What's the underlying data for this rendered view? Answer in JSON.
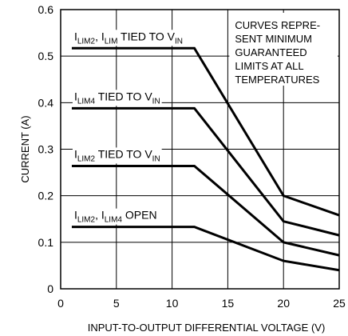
{
  "chart_data": {
    "type": "line",
    "xlabel": "INPUT-TO-OUTPUT DIFFERENTIAL VOLTAGE (V)",
    "ylabel": "CURRENT (A)",
    "xlim": [
      0,
      25
    ],
    "ylim": [
      0,
      0.6
    ],
    "xticks": [
      "0",
      "5",
      "10",
      "15",
      "20",
      "25"
    ],
    "yticks": [
      "0",
      "0.1",
      "0.2",
      "0.3",
      "0.4",
      "0.5",
      "0.6"
    ],
    "grid": true,
    "note_lines": [
      "CURVES REPRE-",
      "SENT MINIMUM",
      "GUARANTEED",
      "LIMITS AT ALL",
      "TEMPERATURES"
    ],
    "series": [
      {
        "label_parts": [
          [
            "I",
            false
          ],
          [
            "LIM2",
            true
          ],
          [
            ", I",
            false
          ],
          [
            "LIM",
            true
          ],
          [
            " TIED TO V",
            false
          ],
          [
            "IN",
            true
          ]
        ],
        "x": [
          1,
          12,
          20,
          25
        ],
        "y": [
          0.517,
          0.517,
          0.2,
          0.158
        ]
      },
      {
        "label_parts": [
          [
            "I",
            false
          ],
          [
            "LIM4",
            true
          ],
          [
            " TIED TO V",
            false
          ],
          [
            "IN",
            true
          ]
        ],
        "x": [
          1,
          12,
          20,
          25
        ],
        "y": [
          0.388,
          0.388,
          0.145,
          0.115
        ]
      },
      {
        "label_parts": [
          [
            "I",
            false
          ],
          [
            "LIM2",
            true
          ],
          [
            " TIED TO V",
            false
          ],
          [
            "IN",
            true
          ]
        ],
        "x": [
          1,
          12,
          20,
          25
        ],
        "y": [
          0.264,
          0.264,
          0.1,
          0.072
        ]
      },
      {
        "label_parts": [
          [
            "I",
            false
          ],
          [
            "LIM2",
            true
          ],
          [
            ", I",
            false
          ],
          [
            "LIM4",
            true
          ],
          [
            " OPEN",
            false
          ]
        ],
        "x": [
          1,
          12,
          20,
          25
        ],
        "y": [
          0.133,
          0.133,
          0.06,
          0.04
        ]
      }
    ]
  }
}
